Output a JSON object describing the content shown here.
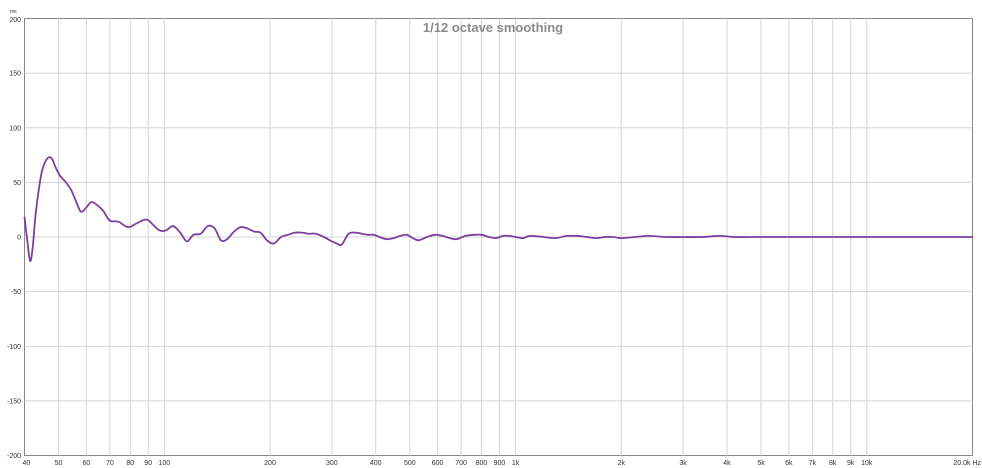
{
  "chart_data": {
    "type": "line",
    "title": "1/12 octave smoothing",
    "ylabel": "ms",
    "xlabel": "",
    "x_scale": "log",
    "xlim": [
      40,
      20000
    ],
    "ylim": [
      -200,
      200
    ],
    "grid": true,
    "x_ticks": [
      {
        "value": 40,
        "label": "40"
      },
      {
        "value": 50,
        "label": "50"
      },
      {
        "value": 60,
        "label": "60"
      },
      {
        "value": 70,
        "label": "70"
      },
      {
        "value": 80,
        "label": "80"
      },
      {
        "value": 90,
        "label": "90"
      },
      {
        "value": 100,
        "label": "100"
      },
      {
        "value": 200,
        "label": "200"
      },
      {
        "value": 300,
        "label": "300"
      },
      {
        "value": 400,
        "label": "400"
      },
      {
        "value": 500,
        "label": "500"
      },
      {
        "value": 600,
        "label": "600"
      },
      {
        "value": 700,
        "label": "700"
      },
      {
        "value": 800,
        "label": "800"
      },
      {
        "value": 900,
        "label": "900"
      },
      {
        "value": 1000,
        "label": "1k"
      },
      {
        "value": 2000,
        "label": "2k"
      },
      {
        "value": 3000,
        "label": "3k"
      },
      {
        "value": 4000,
        "label": "4k"
      },
      {
        "value": 5000,
        "label": "5k"
      },
      {
        "value": 6000,
        "label": "6k"
      },
      {
        "value": 7000,
        "label": "7k"
      },
      {
        "value": 8000,
        "label": "8k"
      },
      {
        "value": 9000,
        "label": "9k"
      },
      {
        "value": 10000,
        "label": "10k"
      },
      {
        "value": 20000,
        "label": "20.0k Hz"
      }
    ],
    "y_ticks": [
      {
        "value": 200,
        "label": "200"
      },
      {
        "value": 150,
        "label": "150"
      },
      {
        "value": 100,
        "label": "100"
      },
      {
        "value": 50,
        "label": "50"
      },
      {
        "value": 0,
        "label": "0"
      },
      {
        "value": -50,
        "label": "-50"
      },
      {
        "value": -100,
        "label": "-100"
      },
      {
        "value": -150,
        "label": "-150"
      },
      {
        "value": -200,
        "label": "-200"
      }
    ],
    "series": [
      {
        "color": "#7b3fa0",
        "x": [
          40,
          40.8,
          41.5,
          42.2,
          43,
          44,
          45,
          46.5,
          47.8,
          49,
          50.5,
          52.5,
          54.5,
          56.5,
          58,
          60,
          62,
          64.5,
          67,
          70,
          74,
          79,
          84,
          89,
          93,
          97,
          101,
          106,
          111,
          116,
          121,
          127,
          133,
          139,
          145,
          151,
          158,
          165,
          172,
          180,
          188,
          196,
          205,
          215,
          225,
          235,
          246,
          257,
          270,
          285,
          300,
          310,
          320,
          335,
          350,
          365,
          380,
          395,
          410,
          430,
          450,
          470,
          490,
          510,
          530,
          560,
          590,
          620,
          650,
          680,
          720,
          760,
          800,
          840,
          880,
          920,
          960,
          1000,
          1050,
          1100,
          1200,
          1300,
          1400,
          1500,
          1600,
          1700,
          1800,
          1900,
          2000,
          2200,
          2400,
          2700,
          3000,
          3400,
          3800,
          4200,
          4600,
          5000,
          5500,
          6000,
          7000,
          8000,
          9000,
          10000,
          12000,
          14000,
          17000,
          20000
        ],
        "y": [
          18,
          -5,
          -22,
          -10,
          20,
          45,
          62,
          72,
          72,
          64,
          56,
          50,
          42,
          30,
          23,
          27,
          32,
          29,
          24,
          15,
          14,
          9,
          13,
          16,
          11,
          6,
          6,
          10,
          4,
          -4,
          2,
          3,
          10,
          8,
          -3,
          -2,
          5,
          9,
          8,
          5,
          4,
          -3,
          -6,
          0,
          2,
          4,
          4,
          3,
          3,
          0,
          -4,
          -6,
          -7,
          3,
          4,
          3,
          2,
          2,
          0,
          -2,
          -1,
          1,
          2,
          -1,
          -3,
          0,
          2,
          1,
          -1,
          -2,
          1,
          2,
          2,
          0,
          -1,
          1,
          1,
          0,
          -1,
          1,
          0,
          -1,
          1,
          1,
          0,
          -1,
          0,
          0,
          -1,
          0,
          1,
          0,
          0,
          0,
          1,
          0,
          0,
          0,
          0,
          0,
          0,
          0,
          0,
          0,
          0,
          0,
          0,
          0
        ]
      }
    ]
  }
}
